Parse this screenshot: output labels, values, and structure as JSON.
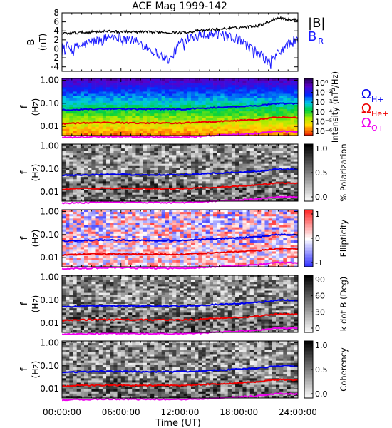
{
  "title": "ACE Mag 1999-142",
  "xlabel": "Time (UT)",
  "x_ticks": [
    "00:00:00",
    "06:00:00",
    "12:00:00",
    "18:00:00",
    "24:00:00"
  ],
  "colors": {
    "b_total": "#000000",
    "b_r": "#1a1aff",
    "omega_h": "#0000ee",
    "omega_he": "#ee0000",
    "omega_o": "#ee00ee"
  },
  "legend": {
    "b_total": "|B|",
    "b_r_main": "B",
    "b_r_sub": "R",
    "omega_h_sub": "H+",
    "omega_he_sub": "He+",
    "omega_o_sub": "O+"
  },
  "chart_data": [
    {
      "type": "line",
      "name": "field",
      "ylabel": "B",
      "yunit": "(nT)",
      "x_range_hours": [
        0,
        24
      ],
      "ylim": [
        -5,
        8
      ],
      "y_ticks": [
        "8",
        "6",
        "4",
        "2",
        "0",
        "-2",
        "-4"
      ],
      "series": [
        {
          "name": "|B|",
          "x": [
            0,
            2,
            4,
            6,
            8,
            10,
            12,
            14,
            16,
            18,
            20,
            21,
            22,
            23,
            24
          ],
          "values": [
            3.4,
            3.6,
            3.9,
            3.8,
            3.7,
            3.7,
            3.6,
            4.0,
            4.4,
            4.7,
            5.2,
            6.0,
            7.0,
            6.5,
            6.4
          ]
        },
        {
          "name": "B_R",
          "x": [
            0,
            1,
            2,
            3,
            4,
            5,
            6,
            7,
            8,
            9,
            10,
            11,
            12,
            13,
            14,
            15,
            16,
            17,
            18,
            19,
            20,
            21,
            22,
            23,
            24
          ],
          "values": [
            1.0,
            0.0,
            0.8,
            1.5,
            2.0,
            2.8,
            2.6,
            2.0,
            1.2,
            0.0,
            -1.5,
            -2.5,
            1.5,
            2.8,
            3.2,
            3.3,
            3.2,
            2.5,
            2.0,
            0.5,
            -1.0,
            -3.0,
            -1.0,
            1.0,
            2.0
          ]
        }
      ]
    },
    {
      "type": "heatmap",
      "name": "intensity",
      "ylabel": "f",
      "yunit": "(Hz)",
      "y_scale": "log",
      "ylim": [
        0.004,
        1.2
      ],
      "y_ticks": [
        "1.00",
        "0.10",
        "0.01"
      ],
      "colorbar_label": "Intensity (nT²/Hz)",
      "colorbar_ticks": [
        "10⁰",
        "10⁻²",
        "10⁻³",
        "10⁻⁴",
        "10⁻⁵",
        "10⁻⁶"
      ],
      "colorbar_scale": "rainbow"
    },
    {
      "type": "heatmap",
      "name": "polarization",
      "ylabel": "f",
      "yunit": "(Hz)",
      "y_scale": "log",
      "ylim": [
        0.004,
        1.2
      ],
      "y_ticks": [
        "1.00",
        "0.10",
        "0.01"
      ],
      "colorbar_label": "% Polarization",
      "colorbar_ticks": [
        "1.0",
        "0.5",
        "0.0"
      ],
      "colorbar_scale": "grayscale"
    },
    {
      "type": "heatmap",
      "name": "ellipticity",
      "ylabel": "f",
      "yunit": "(Hz)",
      "y_scale": "log",
      "ylim": [
        0.004,
        1.2
      ],
      "y_ticks": [
        "1.00",
        "0.10",
        "0.01"
      ],
      "colorbar_label": "Ellipticity",
      "colorbar_ticks": [
        "1",
        "0",
        "-1"
      ],
      "colorbar_scale": "blue-white-red"
    },
    {
      "type": "heatmap",
      "name": "kdotb",
      "ylabel": "f",
      "yunit": "(Hz)",
      "y_scale": "log",
      "ylim": [
        0.004,
        1.2
      ],
      "y_ticks": [
        "1.00",
        "0.10",
        "0.01"
      ],
      "colorbar_label": "k dot B (Deg)",
      "colorbar_ticks": [
        "90",
        "60",
        "30",
        "0"
      ],
      "colorbar_scale": "grayscale"
    },
    {
      "type": "heatmap",
      "name": "coherency",
      "ylabel": "f",
      "yunit": "(Hz)",
      "y_scale": "log",
      "ylim": [
        0.004,
        1.2
      ],
      "y_ticks": [
        "1.00",
        "0.10",
        "0.01"
      ],
      "colorbar_label": "Coherency",
      "colorbar_ticks": [
        "1.0",
        "0.5",
        "0.0"
      ],
      "colorbar_scale": "grayscale"
    }
  ],
  "gyrofrequencies": {
    "x_hours": [
      0,
      2,
      4,
      6,
      8,
      10,
      12,
      14,
      16,
      18,
      20,
      22,
      24
    ],
    "H+": [
      0.052,
      0.055,
      0.058,
      0.057,
      0.056,
      0.056,
      0.055,
      0.06,
      0.066,
      0.072,
      0.08,
      0.1,
      0.097
    ],
    "He+": [
      0.013,
      0.014,
      0.0145,
      0.0143,
      0.014,
      0.014,
      0.0138,
      0.015,
      0.0165,
      0.018,
      0.02,
      0.025,
      0.024
    ],
    "O+": [
      0.0033,
      0.0034,
      0.0036,
      0.0036,
      0.0035,
      0.0035,
      0.0034,
      0.0037,
      0.0041,
      0.0045,
      0.005,
      0.0062,
      0.006
    ]
  }
}
